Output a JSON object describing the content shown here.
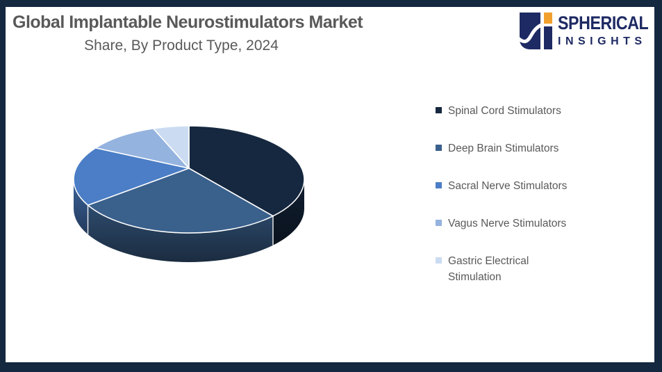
{
  "frame": {
    "border_color": "#14283F",
    "background_color": "#FFFFFF"
  },
  "header": {
    "title": "Global Implantable Neurostimulators Market",
    "subtitle": "Share, By Product Type, 2024",
    "text_color": "#595959"
  },
  "logo": {
    "brand_line1": "SPHERICAL",
    "brand_line2": "INSIGHTS",
    "navy": "#1E2A63",
    "orange": "#F1A02E"
  },
  "chart_data": {
    "type": "pie",
    "style": "3d",
    "title": "Global Implantable Neurostimulators Market Share, By Product Type, 2024",
    "unit": "percent",
    "values_estimated": true,
    "start_angle_deg": 0,
    "direction": "clockwise",
    "legend_position": "right",
    "data_labels_shown": false,
    "slices": [
      {
        "label": "Spinal Cord Stimulators",
        "value": 37,
        "color": "#16283F"
      },
      {
        "label": "Deep Brain Stimulators",
        "value": 30,
        "color": "#3A608C"
      },
      {
        "label": "Sacral Nerve Stimulators",
        "value": 18,
        "color": "#4B7EC6"
      },
      {
        "label": "Vagus Nerve Stimulators",
        "value": 10,
        "color": "#95B3DF"
      },
      {
        "label": "Gastric Electrical Stimulation",
        "value": 5,
        "color": "#CBDCF2"
      }
    ]
  }
}
